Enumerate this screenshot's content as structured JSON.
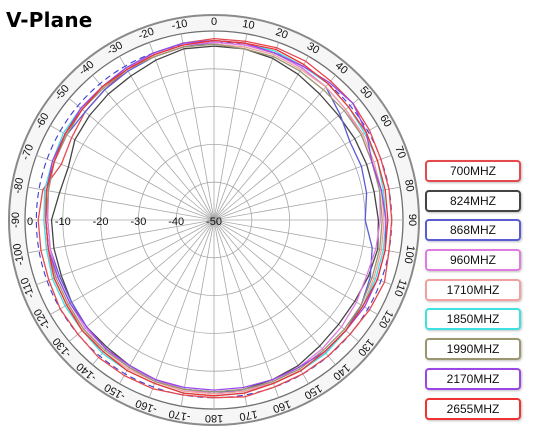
{
  "chart_data": {
    "type": "polar-line",
    "title": "V-Plane",
    "angle_ticks": [
      "0",
      "10",
      "20",
      "30",
      "40",
      "50",
      "60",
      "70",
      "80",
      "90",
      "100",
      "110",
      "120",
      "130",
      "140",
      "150",
      "160",
      "170",
      "180",
      "-170",
      "-160",
      "-150",
      "-140",
      "-130",
      "-120",
      "-110",
      "-100",
      "-90",
      "-80",
      "-70",
      "-60",
      "-50",
      "-40",
      "-30",
      "-20",
      "-10"
    ],
    "radial_ticks": [
      "-50",
      "-40",
      "-30",
      "-20",
      "-10",
      "0"
    ],
    "r_range": [
      -50,
      0
    ],
    "reference_ring_db": -3,
    "angles": [
      0,
      10,
      20,
      30,
      40,
      50,
      60,
      70,
      80,
      90,
      100,
      110,
      120,
      130,
      140,
      150,
      160,
      170,
      180,
      190,
      200,
      210,
      220,
      230,
      240,
      250,
      260,
      270,
      280,
      290,
      300,
      310,
      320,
      330,
      340,
      350
    ],
    "series": [
      {
        "name": "700MHZ",
        "color": "#e5484d",
        "values": [
          -2,
          -2,
          -1.5,
          -1.5,
          -2,
          -2,
          -2.5,
          -3,
          -3,
          -3,
          -3,
          -2,
          -2.5,
          -3,
          -3,
          -3,
          -3,
          -2.5,
          -3,
          -3,
          -2.5,
          -2.5,
          -2.5,
          -3,
          -3,
          -3.5,
          -3.5,
          -3.5,
          -4,
          -7,
          -6.5,
          -5.5,
          -5,
          -4,
          -3,
          -2.5
        ]
      },
      {
        "name": "824MHZ",
        "color": "#444444",
        "values": [
          -4,
          -4,
          -4.5,
          -5.5,
          -6.5,
          -7,
          -7,
          -7,
          -7,
          -6.5,
          -6,
          -6.5,
          -7,
          -7,
          -6.5,
          -5.5,
          -5,
          -4.5,
          -4.5,
          -4.5,
          -5,
          -5.5,
          -6,
          -6,
          -6.5,
          -7,
          -7,
          -7,
          -8.5,
          -9,
          -7.5,
          -7,
          -6.5,
          -6,
          -5,
          -4
        ]
      },
      {
        "name": "868MHZ",
        "color": "#5b5bd6",
        "values": [
          -3,
          -3,
          -3,
          -3.5,
          -4,
          -6.5,
          -8.5,
          -8.5,
          -9,
          -10,
          -7.5,
          -6,
          -5,
          -4.5,
          -4,
          -4,
          -4,
          -4,
          -4.5,
          -4.5,
          -5,
          -5,
          -5.5,
          -6,
          -6.5,
          -6.5,
          -6,
          -6,
          -5.5,
          -5,
          -5,
          -5.5,
          -5,
          -4.5,
          -4,
          -3.5
        ]
      },
      {
        "name": "960MHZ",
        "color": "#e07be0",
        "values": [
          -3,
          -3,
          -3,
          -3.5,
          -4,
          -4.5,
          -5,
          -5.5,
          -5.5,
          -6,
          -6.5,
          -7,
          -6.5,
          -6,
          -5.5,
          -5,
          -4.5,
          -4,
          -4,
          -4.5,
          -5,
          -5,
          -5.5,
          -5.5,
          -6,
          -6,
          -6,
          -6,
          -5.5,
          -5,
          -4.5,
          -4,
          -4,
          -3.5,
          -3.5,
          -3
        ]
      },
      {
        "name": "1710MHZ",
        "color": "#f2a0a0",
        "values": [
          -3.5,
          -3.5,
          -3.5,
          -4,
          -4,
          -4.5,
          -4.5,
          -5,
          -5,
          -5,
          -5,
          -5,
          -4.5,
          -4.5,
          -4.5,
          -4,
          -4,
          -4,
          -4,
          -4,
          -4.5,
          -4.5,
          -4.5,
          -5,
          -5,
          -5,
          -5,
          -5,
          -5,
          -5,
          -4.5,
          -4.5,
          -4,
          -4,
          -4,
          -3.5
        ]
      },
      {
        "name": "1850MHZ",
        "color": "#3fe0e0",
        "values": [
          -2.5,
          -2.5,
          -2.5,
          -3,
          -3,
          -3.5,
          -4,
          -4,
          -4.5,
          -4.5,
          -4.5,
          -4.5,
          -4.5,
          -4.5,
          -4,
          -4,
          -4,
          -3.5,
          -3.5,
          -3.5,
          -4,
          -4,
          -4,
          -4.5,
          -4.5,
          -4.5,
          -5,
          -5,
          -4.5,
          -4.5,
          -4,
          -4,
          -4,
          -3.5,
          -3,
          -2.5
        ]
      },
      {
        "name": "1990MHZ",
        "color": "#9a9670",
        "values": [
          -3.5,
          -4,
          -4,
          -4.5,
          -5,
          -5,
          -5,
          -5.5,
          -5.5,
          -5.5,
          -5.5,
          -5.5,
          -5,
          -5,
          -5,
          -4.5,
          -4.5,
          -4.5,
          -4.5,
          -4.5,
          -4.5,
          -5,
          -5,
          -5,
          -5.5,
          -5.5,
          -5.5,
          -5.5,
          -5.5,
          -5,
          -5,
          -4.5,
          -4.5,
          -4,
          -4,
          -3.5
        ]
      },
      {
        "name": "2170MHZ",
        "color": "#9a47e6",
        "values": [
          -2.5,
          -2.5,
          -3,
          -3,
          -2.5,
          -2,
          -3.5,
          -5.5,
          -5,
          -4.5,
          -4,
          -4,
          -4,
          -4.5,
          -4.5,
          -5,
          -5,
          -5,
          -5,
          -5,
          -5,
          -5.5,
          -5.5,
          -6,
          -6,
          -6,
          -5.5,
          -5.5,
          -5,
          -4.5,
          -4.5,
          -4,
          -4,
          -3.5,
          -3,
          -2.5
        ]
      },
      {
        "name": "2655MHZ",
        "color": "#ee3333",
        "values": [
          -2.5,
          -2.5,
          -2,
          -2.5,
          -3,
          -3.5,
          -3.5,
          -4,
          -4,
          -4,
          -4,
          -4,
          -4.5,
          -4.5,
          -4.5,
          -4,
          -4,
          -3.5,
          -3.5,
          -3.5,
          -4,
          -4,
          -4.5,
          -4.5,
          -5,
          -5,
          -5.5,
          -5.5,
          -5,
          -5,
          -4.5,
          -4.5,
          -4,
          -4,
          -3.5,
          -3
        ]
      }
    ]
  }
}
